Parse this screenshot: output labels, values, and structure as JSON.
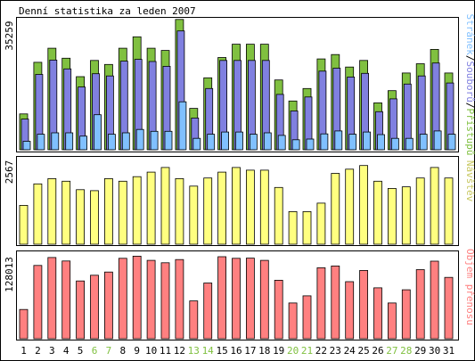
{
  "chart_title": "Denní statistika za leden 2007",
  "colors": {
    "background": "#ffffff",
    "border": "#000000",
    "hits": "#80c040",
    "files": "#8080e0",
    "pages": "#80c0ff",
    "visits": "#ffff80",
    "kbytes": "#ff8080",
    "weekend_label": "#80c040",
    "weekday_label": "#000000"
  },
  "chart_data": [
    {
      "type": "bar",
      "panel": "hits-files-pages",
      "ymax_label": "35259",
      "ylim": [
        0,
        35259
      ],
      "legend": {
        "hits": "Přístupů",
        "sep1": "/",
        "files": "Souborů",
        "sep2": "/",
        "pages": "Stránek"
      },
      "categories": [
        "1",
        "2",
        "3",
        "4",
        "5",
        "6",
        "7",
        "8",
        "9",
        "10",
        "11",
        "12",
        "13",
        "14",
        "15",
        "16",
        "17",
        "18",
        "19",
        "20",
        "21",
        "22",
        "23",
        "24",
        "25",
        "26",
        "27",
        "28",
        "29",
        "30",
        "31"
      ],
      "series": [
        {
          "name": "Přístupů",
          "values": [
            9700,
            23700,
            27500,
            24800,
            19800,
            24200,
            23100,
            27500,
            30600,
            27500,
            26900,
            35300,
            11200,
            19500,
            25000,
            28600,
            28600,
            28600,
            18900,
            13200,
            16600,
            24600,
            25800,
            22400,
            24200,
            12700,
            16000,
            20800,
            23300,
            27200,
            20800
          ]
        },
        {
          "name": "Souborů",
          "values": [
            8300,
            20400,
            24300,
            21900,
            17000,
            20600,
            20000,
            24000,
            24500,
            23900,
            22600,
            32200,
            8600,
            16600,
            24200,
            24200,
            24200,
            24200,
            15000,
            10500,
            14300,
            21300,
            22100,
            19700,
            20700,
            10300,
            13800,
            17800,
            20000,
            23500,
            18100
          ]
        },
        {
          "name": "Stránek",
          "values": [
            2300,
            4200,
            4600,
            4600,
            3700,
            9500,
            4200,
            4600,
            5500,
            5000,
            5000,
            13000,
            3100,
            4200,
            4800,
            4800,
            4200,
            4600,
            3900,
            2700,
            2900,
            4300,
            5100,
            4200,
            4800,
            4100,
            3100,
            3100,
            4200,
            5100,
            4200
          ]
        }
      ]
    },
    {
      "type": "bar",
      "panel": "visits",
      "ymax_label": "2567",
      "ylim": [
        0,
        2567
      ],
      "legend": {
        "visits": "Návštěv"
      },
      "categories": [
        "1",
        "2",
        "3",
        "4",
        "5",
        "6",
        "7",
        "8",
        "9",
        "10",
        "11",
        "12",
        "13",
        "14",
        "15",
        "16",
        "17",
        "18",
        "19",
        "20",
        "21",
        "22",
        "23",
        "24",
        "25",
        "26",
        "27",
        "28",
        "29",
        "30",
        "31"
      ],
      "series": [
        {
          "name": "Návštěv",
          "values": [
            1190,
            1850,
            2010,
            1930,
            1670,
            1640,
            2010,
            1930,
            2070,
            2210,
            2350,
            2010,
            1780,
            2030,
            2210,
            2350,
            2270,
            2270,
            1740,
            1000,
            1000,
            1260,
            2170,
            2300,
            2410,
            1930,
            1710,
            1760,
            2030,
            2350,
            2030
          ]
        }
      ]
    },
    {
      "type": "bar",
      "panel": "kbytes",
      "ymax_label": "128013",
      "ylim": [
        0,
        128013
      ],
      "legend": {
        "kbytes": "Objem přenosu"
      },
      "categories": [
        "1",
        "2",
        "3",
        "4",
        "5",
        "6",
        "7",
        "8",
        "9",
        "10",
        "11",
        "12",
        "13",
        "14",
        "15",
        "16",
        "17",
        "18",
        "19",
        "20",
        "21",
        "22",
        "23",
        "24",
        "25",
        "26",
        "27",
        "28",
        "29",
        "30",
        "31"
      ],
      "series": [
        {
          "name": "Objem přenosu",
          "values": [
            45600,
            114400,
            126700,
            121300,
            90100,
            99100,
            104100,
            125500,
            128900,
            122300,
            118500,
            123500,
            59000,
            86900,
            128000,
            125500,
            125800,
            122300,
            91300,
            55800,
            66900,
            110700,
            113600,
            89000,
            106600,
            79400,
            55800,
            76400,
            107900,
            121100,
            95800
          ]
        }
      ]
    }
  ],
  "x_axis": {
    "labels": [
      "1",
      "2",
      "3",
      "4",
      "5",
      "6",
      "7",
      "8",
      "9",
      "10",
      "11",
      "12",
      "13",
      "14",
      "15",
      "16",
      "17",
      "18",
      "19",
      "20",
      "21",
      "22",
      "23",
      "24",
      "25",
      "26",
      "27",
      "28",
      "29",
      "30",
      "31"
    ],
    "weekend_days": [
      "6",
      "7",
      "13",
      "14",
      "20",
      "21",
      "27",
      "28"
    ]
  }
}
